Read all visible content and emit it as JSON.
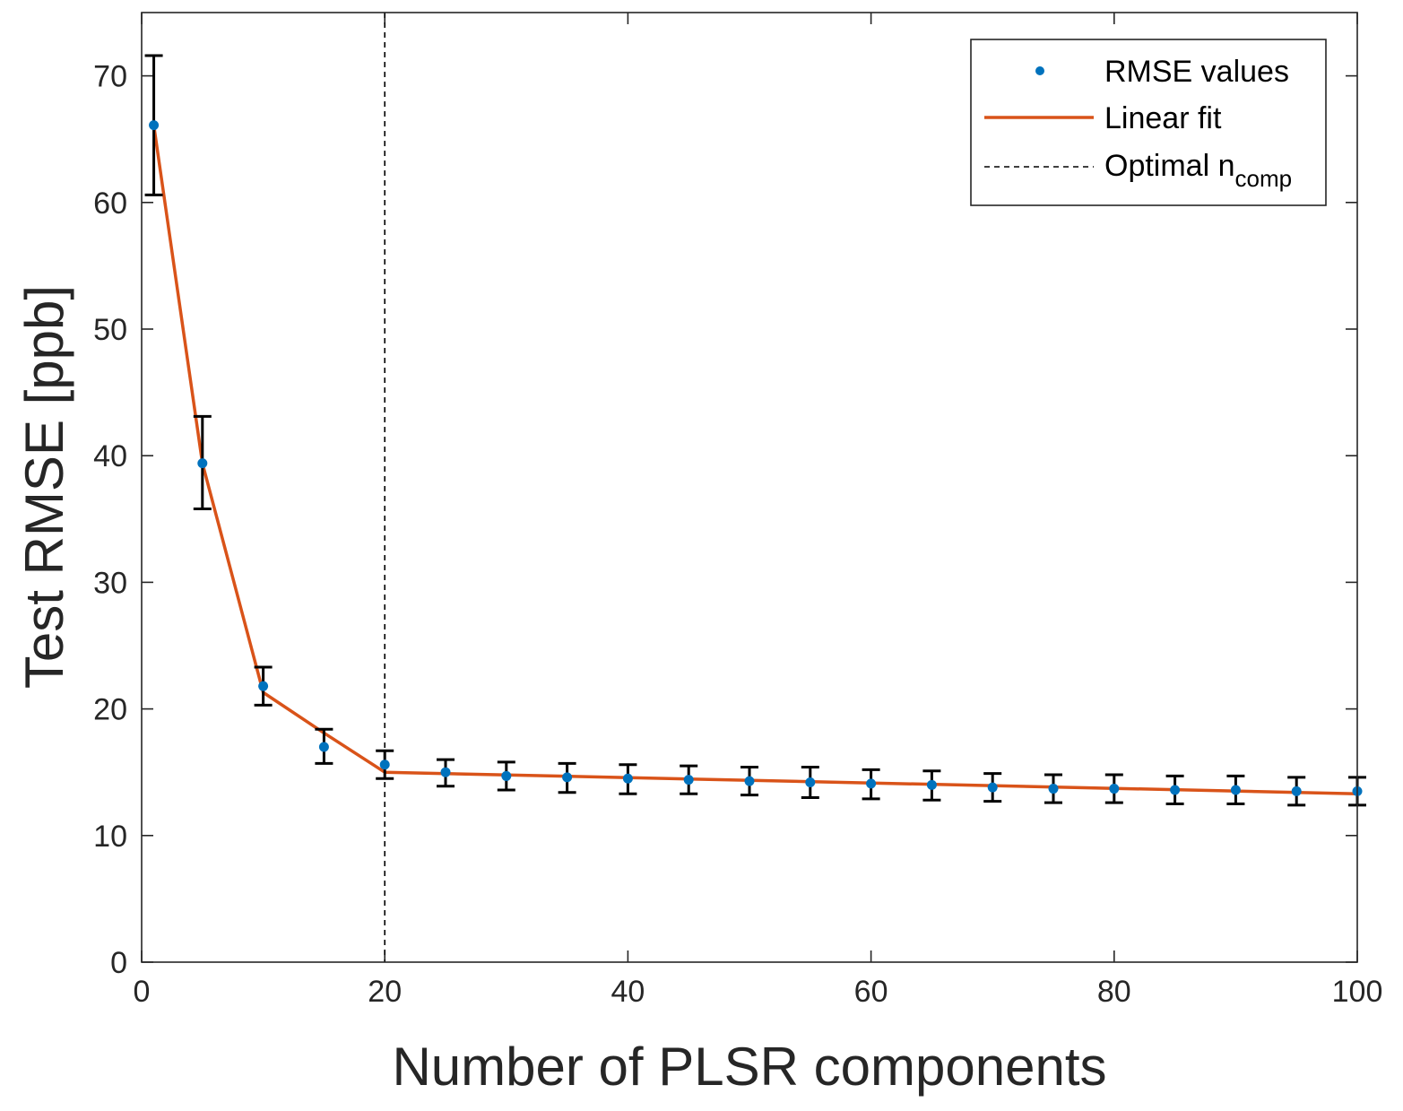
{
  "chart_data": {
    "type": "scatter",
    "xlabel": "Number of PLSR components",
    "ylabel": "Test RMSE [ppb]",
    "xlim": [
      0,
      100
    ],
    "ylim": [
      0,
      75
    ],
    "xticks": [
      0,
      20,
      40,
      60,
      80,
      100
    ],
    "yticks": [
      0,
      10,
      20,
      30,
      40,
      50,
      60,
      70
    ],
    "grid": false,
    "legend_position": "top-right",
    "legend": {
      "rmse_label": "RMSE values",
      "fit_label": "Linear fit",
      "optimal_label": "Optimal n",
      "optimal_sub": "comp"
    },
    "colors": {
      "points": "#0072BD",
      "fit": "#D95319",
      "errorbars": "#000000",
      "optimal_line": "#000000",
      "axis": "#262626"
    },
    "optimal_x": 20,
    "series": [
      {
        "name": "RMSE values",
        "x": [
          1,
          5,
          10,
          15,
          20,
          25,
          30,
          35,
          40,
          45,
          50,
          55,
          60,
          65,
          70,
          75,
          80,
          85,
          90,
          95,
          100
        ],
        "y": [
          66.1,
          39.4,
          21.8,
          17.0,
          15.6,
          15.0,
          14.7,
          14.6,
          14.5,
          14.4,
          14.3,
          14.2,
          14.1,
          14.0,
          13.8,
          13.7,
          13.7,
          13.6,
          13.6,
          13.5,
          13.5
        ],
        "err_low": [
          60.6,
          35.8,
          20.3,
          15.7,
          14.5,
          13.9,
          13.6,
          13.4,
          13.3,
          13.3,
          13.2,
          13.0,
          12.9,
          12.8,
          12.7,
          12.6,
          12.6,
          12.5,
          12.5,
          12.4,
          12.4
        ],
        "err_high": [
          71.6,
          43.1,
          23.3,
          18.4,
          16.7,
          16.0,
          15.8,
          15.7,
          15.6,
          15.5,
          15.4,
          15.4,
          15.2,
          15.1,
          14.9,
          14.8,
          14.8,
          14.7,
          14.7,
          14.6,
          14.6
        ]
      },
      {
        "name": "Linear fit",
        "x": [
          1,
          5,
          10,
          15,
          20,
          100
        ],
        "y": [
          66.1,
          39.4,
          21.3,
          18.1,
          15.0,
          13.3
        ]
      }
    ]
  }
}
